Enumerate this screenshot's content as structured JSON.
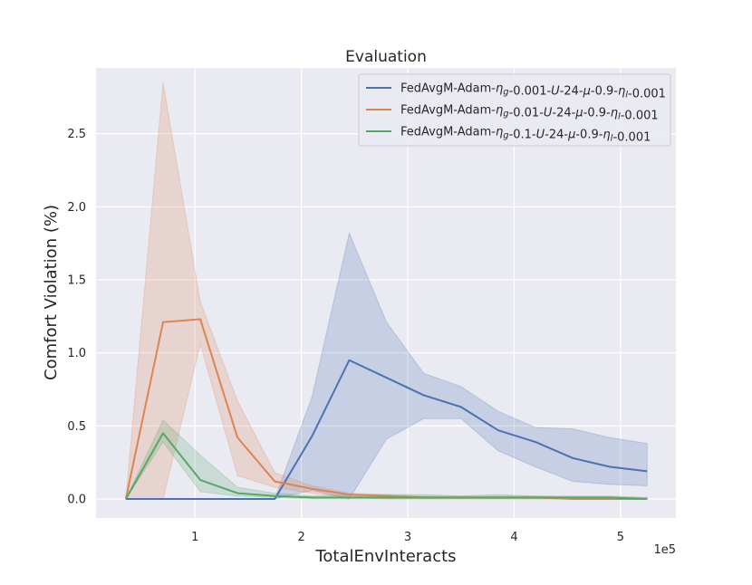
{
  "chart_data": {
    "type": "line",
    "title": "Evaluation",
    "xlabel": "TotalEnvInteracts",
    "ylabel": "Comfort Violation (%)",
    "x_offset_label": "1e5",
    "x_unit_scale": 100000,
    "xlim": [
      0.07,
      5.52
    ],
    "ylim": [
      -0.13,
      2.95
    ],
    "x_ticks": [
      1,
      2,
      3,
      4,
      5
    ],
    "x_tick_labels": [
      "1",
      "2",
      "3",
      "4",
      "5"
    ],
    "y_ticks": [
      0.0,
      0.5,
      1.0,
      1.5,
      2.0,
      2.5
    ],
    "y_tick_labels": [
      "0.0",
      "0.5",
      "1.0",
      "1.5",
      "2.0",
      "2.5"
    ],
    "grid": true,
    "legend_position": "top-right",
    "x": [
      0.35,
      0.7,
      1.05,
      1.4,
      1.75,
      2.1,
      2.45,
      2.8,
      3.15,
      3.5,
      3.85,
      4.2,
      4.55,
      4.9,
      5.25
    ],
    "series": [
      {
        "name": "FedAvgM-Adam-ηg-0.001-U-24-μ-0.9-ηl-0.001",
        "color": "#4c72b0",
        "values": [
          0.0,
          0.0,
          0.0,
          0.0,
          0.0,
          0.43,
          0.95,
          0.83,
          0.71,
          0.63,
          0.47,
          0.39,
          0.28,
          0.22,
          0.19
        ],
        "lower": [
          0.0,
          0.0,
          0.0,
          0.0,
          0.0,
          0.06,
          0.0,
          0.41,
          0.55,
          0.55,
          0.33,
          0.22,
          0.12,
          0.1,
          0.09
        ],
        "upper": [
          0.0,
          0.0,
          0.0,
          0.0,
          0.0,
          0.7,
          1.82,
          1.21,
          0.86,
          0.77,
          0.6,
          0.49,
          0.48,
          0.42,
          0.38
        ]
      },
      {
        "name": "FedAvgM-Adam-ηg-0.01-U-24-μ-0.9-ηl-0.001",
        "color": "#dd8452",
        "values": [
          0.0,
          1.21,
          1.23,
          0.42,
          0.12,
          0.07,
          0.03,
          0.02,
          0.01,
          0.01,
          0.01,
          0.01,
          0.0,
          0.0,
          0.0
        ],
        "lower": [
          0.0,
          0.0,
          1.06,
          0.16,
          0.08,
          0.04,
          0.01,
          0.0,
          0.0,
          0.0,
          0.0,
          0.0,
          0.0,
          0.0,
          0.0
        ],
        "upper": [
          0.0,
          2.85,
          1.35,
          0.67,
          0.18,
          0.09,
          0.04,
          0.03,
          0.02,
          0.02,
          0.02,
          0.02,
          0.01,
          0.01,
          0.01
        ]
      },
      {
        "name": "FedAvgM-Adam-ηg-0.1-U-24-μ-0.9-ηl-0.001",
        "color": "#55a868",
        "values": [
          0.0,
          0.45,
          0.13,
          0.04,
          0.02,
          0.01,
          0.01,
          0.01,
          0.01,
          0.01,
          0.01,
          0.01,
          0.01,
          0.01,
          0.0
        ],
        "lower": [
          0.0,
          0.39,
          0.05,
          0.02,
          0.01,
          0.0,
          0.0,
          0.0,
          0.0,
          0.0,
          0.0,
          0.0,
          0.0,
          0.0,
          0.0
        ],
        "upper": [
          0.0,
          0.54,
          0.3,
          0.08,
          0.04,
          0.02,
          0.03,
          0.03,
          0.03,
          0.02,
          0.03,
          0.02,
          0.02,
          0.02,
          0.01
        ]
      }
    ]
  }
}
